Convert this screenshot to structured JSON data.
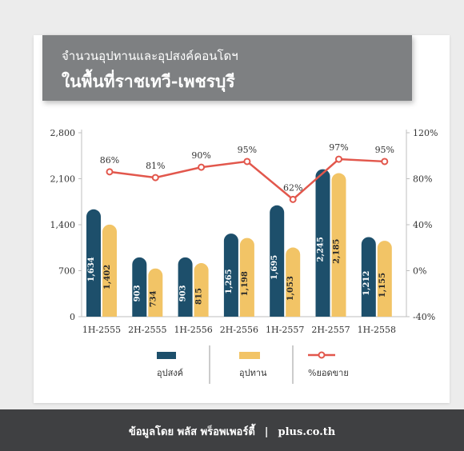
{
  "header": {
    "title_line1": "จำนวนอุปทานและอุปสงค์คอนโดฯ",
    "title_line2": "ในพื้นที่ราชเทวี-เพชรบุรี"
  },
  "footer": {
    "source": "ข้อมูลโดย พลัส พร็อพเพอร์ตี้",
    "separator": "|",
    "website": "plus.co.th"
  },
  "colors": {
    "demand": "#1d4f6b",
    "supply": "#f2c466",
    "sales": "#e2574c",
    "axis": "#bfbfbf",
    "text": "#333333"
  },
  "chart_data": {
    "type": "bar",
    "categories": [
      "1H-2555",
      "2H-2555",
      "1H-2556",
      "2H-2556",
      "1H-2557",
      "2H-2557",
      "1H-2558"
    ],
    "series": [
      {
        "name": "อุปสงค์",
        "type": "bar",
        "axis": "left",
        "values": [
          1634,
          903,
          903,
          1265,
          1695,
          2245,
          1212
        ],
        "labels": [
          "1,634",
          "903",
          "903",
          "1,265",
          "1,695",
          "2,245",
          "1,212"
        ]
      },
      {
        "name": "อุปทาน",
        "type": "bar",
        "axis": "left",
        "values": [
          1402,
          734,
          815,
          1198,
          1053,
          2185,
          1155
        ],
        "labels": [
          "1,402",
          "734",
          "815",
          "1,198",
          "1,053",
          "2,185",
          "1,155"
        ]
      },
      {
        "name": "%ยอดขาย",
        "type": "line",
        "axis": "right",
        "values": [
          86,
          81,
          90,
          95,
          62,
          97,
          95
        ],
        "labels": [
          "86%",
          "81%",
          "90%",
          "95%",
          "62%",
          "97%",
          "95%"
        ]
      }
    ],
    "y_left": {
      "ylim": [
        0,
        2800
      ],
      "ticks": [
        0,
        700,
        1400,
        2100,
        2800
      ],
      "tick_labels": [
        "0",
        "700",
        "1,400",
        "2,100",
        "2,800"
      ]
    },
    "y_right": {
      "ylim": [
        -40,
        120
      ],
      "ticks": [
        -40,
        0,
        40,
        80,
        120
      ],
      "tick_labels": [
        "-40%",
        "0%",
        "40%",
        "80%",
        "120%"
      ]
    },
    "grid": false,
    "legend": "bottom"
  }
}
